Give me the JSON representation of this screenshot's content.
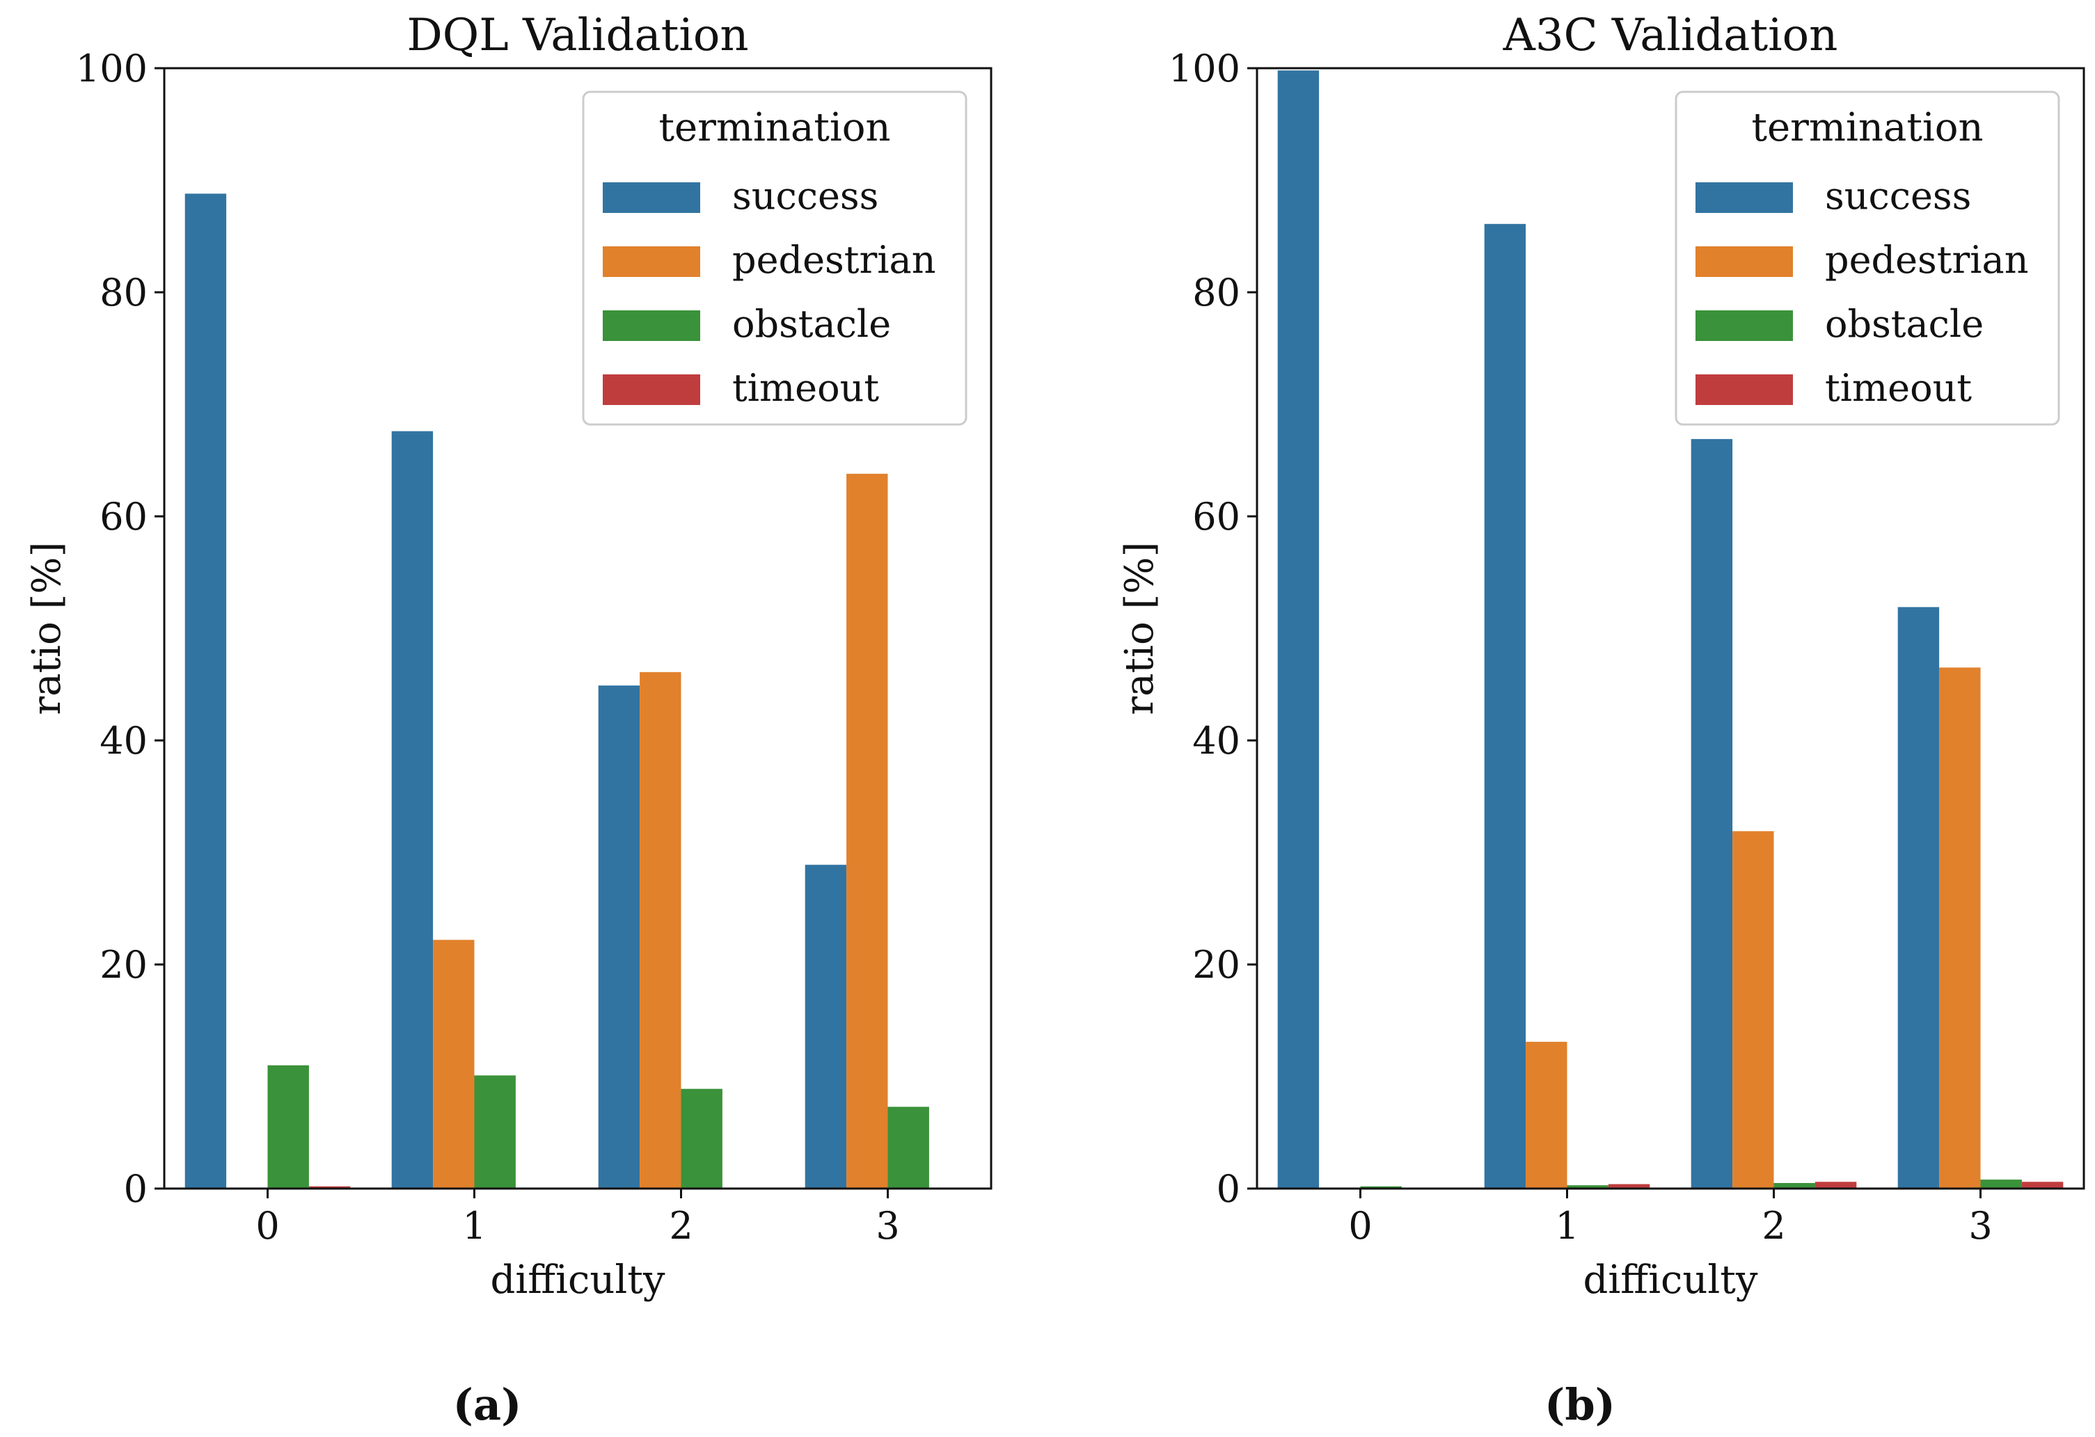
{
  "chart_data": [
    {
      "type": "bar",
      "title": "DQL Validation",
      "xlabel": "difficulty",
      "ylabel": "ratio [%]",
      "ylim": [
        0,
        100
      ],
      "yticks": [
        0,
        20,
        40,
        60,
        80,
        100
      ],
      "categories": [
        "0",
        "1",
        "2",
        "3"
      ],
      "legend_title": "termination",
      "legend_position": "top-right",
      "series": [
        {
          "name": "success",
          "values": [
            88.8,
            67.6,
            44.9,
            28.9
          ]
        },
        {
          "name": "pedestrian",
          "values": [
            0,
            22.2,
            46.1,
            63.8
          ]
        },
        {
          "name": "obstacle",
          "values": [
            11.0,
            10.1,
            8.9,
            7.3
          ]
        },
        {
          "name": "timeout",
          "values": [
            0.2,
            0,
            0,
            0
          ]
        }
      ],
      "caption": "(a)"
    },
    {
      "type": "bar",
      "title": "A3C Validation",
      "xlabel": "difficulty",
      "ylabel": "ratio [%]",
      "ylim": [
        0,
        100
      ],
      "yticks": [
        0,
        20,
        40,
        60,
        80,
        100
      ],
      "categories": [
        "0",
        "1",
        "2",
        "3"
      ],
      "legend_title": "termination",
      "legend_position": "top-right",
      "series": [
        {
          "name": "success",
          "values": [
            99.8,
            86.1,
            66.9,
            51.9
          ]
        },
        {
          "name": "pedestrian",
          "values": [
            0,
            13.1,
            31.9,
            46.5
          ]
        },
        {
          "name": "obstacle",
          "values": [
            0.2,
            0.3,
            0.5,
            0.8
          ]
        },
        {
          "name": "timeout",
          "values": [
            0,
            0.4,
            0.6,
            0.6
          ]
        }
      ],
      "caption": "(b)"
    }
  ],
  "colors": {
    "success": "#3274a1",
    "pedestrian": "#e1812c",
    "obstacle": "#3a923a",
    "timeout": "#c03d3e"
  }
}
